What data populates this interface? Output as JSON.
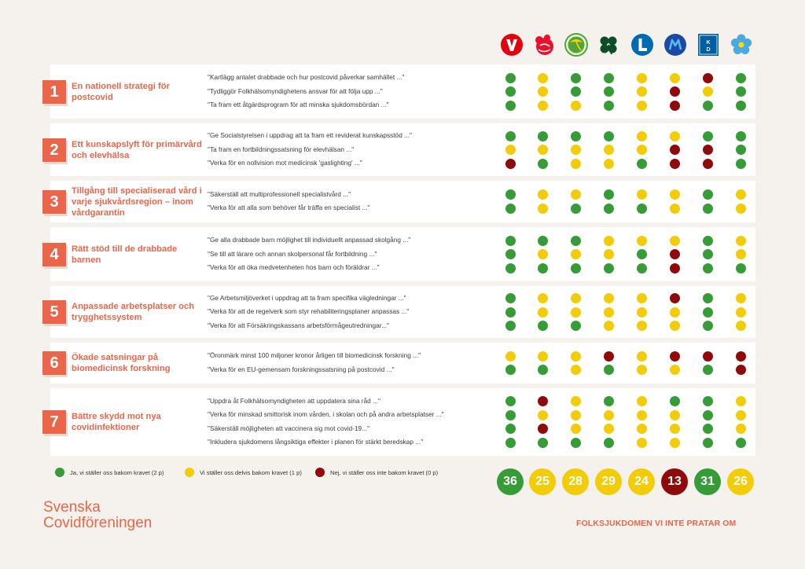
{
  "colors": {
    "green": "#359c37",
    "yellow": "#f2cc06",
    "red": "#8f0a0a",
    "accent": "#ea6549"
  },
  "parties": [
    {
      "key": "V",
      "icon": "v-logo-icon",
      "letter": "V"
    },
    {
      "key": "S",
      "icon": "s-rose-logo-icon",
      "letter": ""
    },
    {
      "key": "MP",
      "icon": "mp-dandelion-logo-icon",
      "letter": ""
    },
    {
      "key": "C",
      "icon": "c-clover-logo-icon",
      "letter": ""
    },
    {
      "key": "L",
      "icon": "l-logo-icon",
      "letter": "L"
    },
    {
      "key": "M",
      "icon": "m-logo-icon",
      "letter": "M"
    },
    {
      "key": "KD",
      "icon": "kd-logo-icon",
      "letter": "K\nD"
    },
    {
      "key": "SD",
      "icon": "sd-flower-logo-icon",
      "letter": ""
    }
  ],
  "chart_data": {
    "type": "table",
    "title": "",
    "columns": [
      "V",
      "S",
      "MP",
      "C",
      "L",
      "M",
      "KD",
      "SD"
    ],
    "legend": {
      "G": "Ja, vi ställer oss bakom kravet (2 p)",
      "Y": "Vi ställer oss delvis bakom kravet (1 p)",
      "R": "Nej, vi ställer oss inte bakom kravet (0 p)"
    },
    "points": {
      "G": 2,
      "Y": 1,
      "R": 0
    },
    "sections": [
      {
        "number": "1",
        "title": "En nationell strategi för postcovid",
        "rows": [
          {
            "demand": "\"Kartlägg antalet drabbade och hur postcovid påverkar samhället ...\"",
            "ratings": [
              "G",
              "Y",
              "G",
              "G",
              "Y",
              "Y",
              "R",
              "G"
            ]
          },
          {
            "demand": "\"Tydliggör Folkhälsomyndighetens ansvar för att följa upp ...\"",
            "ratings": [
              "G",
              "Y",
              "G",
              "G",
              "Y",
              "R",
              "Y",
              "G"
            ]
          },
          {
            "demand": "\"Ta fram ett åtgärdsprogram för att minska sjukdomsbördan ...\"",
            "ratings": [
              "G",
              "Y",
              "Y",
              "G",
              "Y",
              "R",
              "G",
              "G"
            ]
          }
        ]
      },
      {
        "number": "2",
        "title": "Ett kunskapslyft för primärvård och elevhälsa",
        "rows": [
          {
            "demand": "\"Ge Socialstyrelsen i uppdrag att ta fram ett reviderat kunskapsstöd ...\"",
            "ratings": [
              "G",
              "G",
              "G",
              "G",
              "Y",
              "Y",
              "G",
              "G"
            ]
          },
          {
            "demand": "\"Ta fram en fortbildningssatsning för elevhälsan ...\"",
            "ratings": [
              "Y",
              "Y",
              "Y",
              "Y",
              "Y",
              "R",
              "R",
              "G"
            ]
          },
          {
            "demand": "\"Verka för en nollvision mot medicinsk 'gaslighting' ...\"",
            "ratings": [
              "R",
              "G",
              "Y",
              "Y",
              "G",
              "R",
              "R",
              "G"
            ]
          }
        ]
      },
      {
        "number": "3",
        "title": "Tillgång till specialiserad vård i varje sjukvårdsregion – inom vårdgarantin",
        "rows": [
          {
            "demand": "\"Säkerställ att multiprofessionell specialistvård ...\"",
            "ratings": [
              "G",
              "Y",
              "Y",
              "G",
              "Y",
              "Y",
              "G",
              "Y"
            ]
          },
          {
            "demand": "\"Verka för att alla som behöver får träffa en specialist ...\"",
            "ratings": [
              "G",
              "Y",
              "G",
              "G",
              "G",
              "Y",
              "G",
              "Y"
            ]
          }
        ]
      },
      {
        "number": "4",
        "title": "Rätt stöd till de drabbade barnen",
        "rows": [
          {
            "demand": "\"Ge alla drabbade barn möjlighet till individuellt anpassad skolgång ...\"",
            "ratings": [
              "G",
              "G",
              "G",
              "Y",
              "Y",
              "Y",
              "G",
              "Y"
            ]
          },
          {
            "demand": "\"Se till att lärare och annan skolpersonal får fortbildning ...\"",
            "ratings": [
              "G",
              "Y",
              "Y",
              "Y",
              "G",
              "R",
              "G",
              "Y"
            ]
          },
          {
            "demand": "\"Verka för att öka medvetenheten hos barn och föräldrar ...\"",
            "ratings": [
              "G",
              "G",
              "G",
              "G",
              "G",
              "R",
              "G",
              "G"
            ]
          }
        ]
      },
      {
        "number": "5",
        "title": "Anpassade arbetsplatser och trygghetssystem",
        "rows": [
          {
            "demand": "\"Ge Arbetsmiljöverket i uppdrag att ta fram specifika vägledningar ...\"",
            "ratings": [
              "G",
              "Y",
              "Y",
              "Y",
              "Y",
              "R",
              "G",
              "Y"
            ]
          },
          {
            "demand": "\"Verka för att de regelverk som styr rehabiliteringsplaner anpassas ...\"",
            "ratings": [
              "G",
              "Y",
              "Y",
              "Y",
              "Y",
              "Y",
              "G",
              "Y"
            ]
          },
          {
            "demand": "\"Verka för att Försäkringskassans arbetsförmågeutredningar...\"",
            "ratings": [
              "G",
              "G",
              "G",
              "Y",
              "Y",
              "Y",
              "G",
              "Y"
            ]
          }
        ]
      },
      {
        "number": "6",
        "title": "Ökade satsningar på biomedicinsk forskning",
        "rows": [
          {
            "demand": "\"Öronmärk minst 100 miljoner kronor årligen till biomedicinsk forskning ...\"",
            "ratings": [
              "Y",
              "Y",
              "Y",
              "R",
              "Y",
              "R",
              "R",
              "R"
            ]
          },
          {
            "demand": "\"Verka för en EU-gemensam forskningssatsning på postcovid ...\"",
            "ratings": [
              "G",
              "G",
              "Y",
              "G",
              "Y",
              "Y",
              "G",
              "R"
            ]
          }
        ]
      },
      {
        "number": "7",
        "title": "Bättre skydd mot nya covidinfektioner",
        "rows": [
          {
            "demand": "\"Uppdra åt Folkhälsomyndigheten att uppdatera sina råd ...\"",
            "ratings": [
              "G",
              "R",
              "Y",
              "G",
              "Y",
              "G",
              "G",
              "Y"
            ]
          },
          {
            "demand": "\"Verka för minskad smittorisk inom vården, i skolan och på andra arbetsplatser ...\"",
            "ratings": [
              "G",
              "Y",
              "Y",
              "Y",
              "Y",
              "Y",
              "G",
              "Y"
            ]
          },
          {
            "demand": "\"Säkerställ möjligheten att vaccinera sig mot covid-19...\"",
            "ratings": [
              "G",
              "R",
              "Y",
              "Y",
              "Y",
              "Y",
              "G",
              "Y"
            ]
          },
          {
            "demand": "\"Inkludera sjukdomens långsiktiga effekter i planen för stärkt beredskap ...\"",
            "ratings": [
              "G",
              "G",
              "G",
              "G",
              "Y",
              "Y",
              "G",
              "G"
            ]
          }
        ]
      }
    ],
    "totals": [
      {
        "party": "V",
        "score": "36",
        "color": "G"
      },
      {
        "party": "S",
        "score": "25",
        "color": "Y"
      },
      {
        "party": "MP",
        "score": "28",
        "color": "Y"
      },
      {
        "party": "C",
        "score": "29",
        "color": "Y"
      },
      {
        "party": "L",
        "score": "24",
        "color": "Y"
      },
      {
        "party": "M",
        "score": "13",
        "color": "R"
      },
      {
        "party": "KD",
        "score": "31",
        "color": "G"
      },
      {
        "party": "SD",
        "score": "26",
        "color": "Y"
      }
    ]
  },
  "footer": {
    "brand_line1": "Svenska",
    "brand_line2": "Covidföreningen",
    "tagline": "FOLKSJUKDOMEN VI INTE PRATAR OM"
  }
}
